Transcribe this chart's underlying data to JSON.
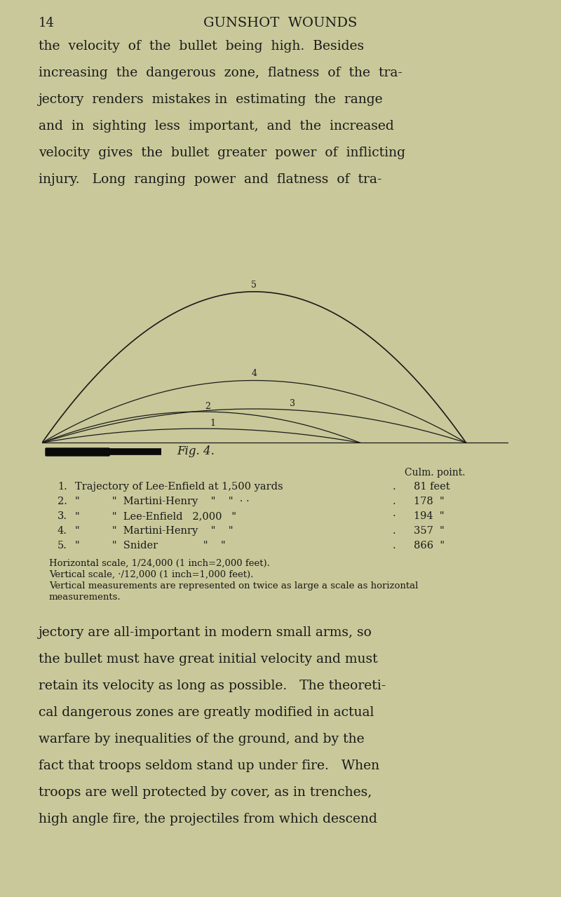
{
  "bg_color": "#c8c89a",
  "page_number": "14",
  "page_title": "GUNSHOT  WOUNDS",
  "top_text_lines": [
    "the  velocity  of  the  bullet  being  high.  Besides",
    "increasing  the  dangerous  zone,  flatness  of  the  tra-",
    "jectory  renders  mistakes in  estimating  the  range",
    "and  in  sighting  less  important,  and  the  increased",
    "velocity  gives  the  bullet  greater  power  of  inflicting",
    "injury.   Long  ranging  power  and  flatness  of  tra-"
  ],
  "bottom_text_lines": [
    "jectory are all-important in modern small arms, so",
    "the bullet must have great initial velocity and must",
    "retain its velocity as long as possible.   The theoreti-",
    "cal dangerous zones are greatly modified in actual",
    "warfare by inequalities of the ground, and by the",
    "fact that troops seldom stand up under fire.   When",
    "troops are well protected by cover, as in trenches,",
    "high angle fire, the projectiles from which descend"
  ],
  "fig_caption": "Fig. 4.",
  "culm_header": "Culm. point.",
  "legend_items": [
    {
      "num": "1.",
      "text": "Trajectory of Lee-Enfield at 1,500 yards",
      "dots": ".",
      "value": "81 feet"
    },
    {
      "num": "2.",
      "text": "\"          \"  Martini-Henry    \"    \"  · ·",
      "dots": ".",
      "value": "178  \""
    },
    {
      "num": "3.",
      "text": "\"          \"  Lee-Enfield   2,000   \"",
      "dots": "·",
      "value": "194  \""
    },
    {
      "num": "4.",
      "text": "\"          \"  Martini-Henry    \"    \"",
      "dots": ".",
      "value": "357  \""
    },
    {
      "num": "5.",
      "text": "\"          \"  Snider              \"    \"",
      "dots": ".",
      "value": "866  \""
    }
  ],
  "scale_lines": [
    "Horizontal scale, 1/24,000 (1 inch=2,000 feet).",
    "Vertical scale, ·/12,000 (1 inch=1,000 feet).",
    "Vertical measurements are represented on twice as large a scale as horizontal",
    "measurements."
  ],
  "trajectories": [
    {
      "label": "1",
      "range_yards": 1500,
      "culm_feet": 81,
      "lw": 0.9
    },
    {
      "label": "2",
      "range_yards": 1500,
      "culm_feet": 178,
      "lw": 0.9
    },
    {
      "label": "3",
      "range_yards": 2000,
      "culm_feet": 194,
      "lw": 0.9
    },
    {
      "label": "4",
      "range_yards": 2000,
      "culm_feet": 357,
      "lw": 0.9
    },
    {
      "label": "5",
      "range_yards": 2000,
      "culm_feet": 866,
      "lw": 1.2
    }
  ],
  "text_color": "#1a1a1a",
  "font_size_body": 13.5,
  "font_size_legend": 10.5
}
